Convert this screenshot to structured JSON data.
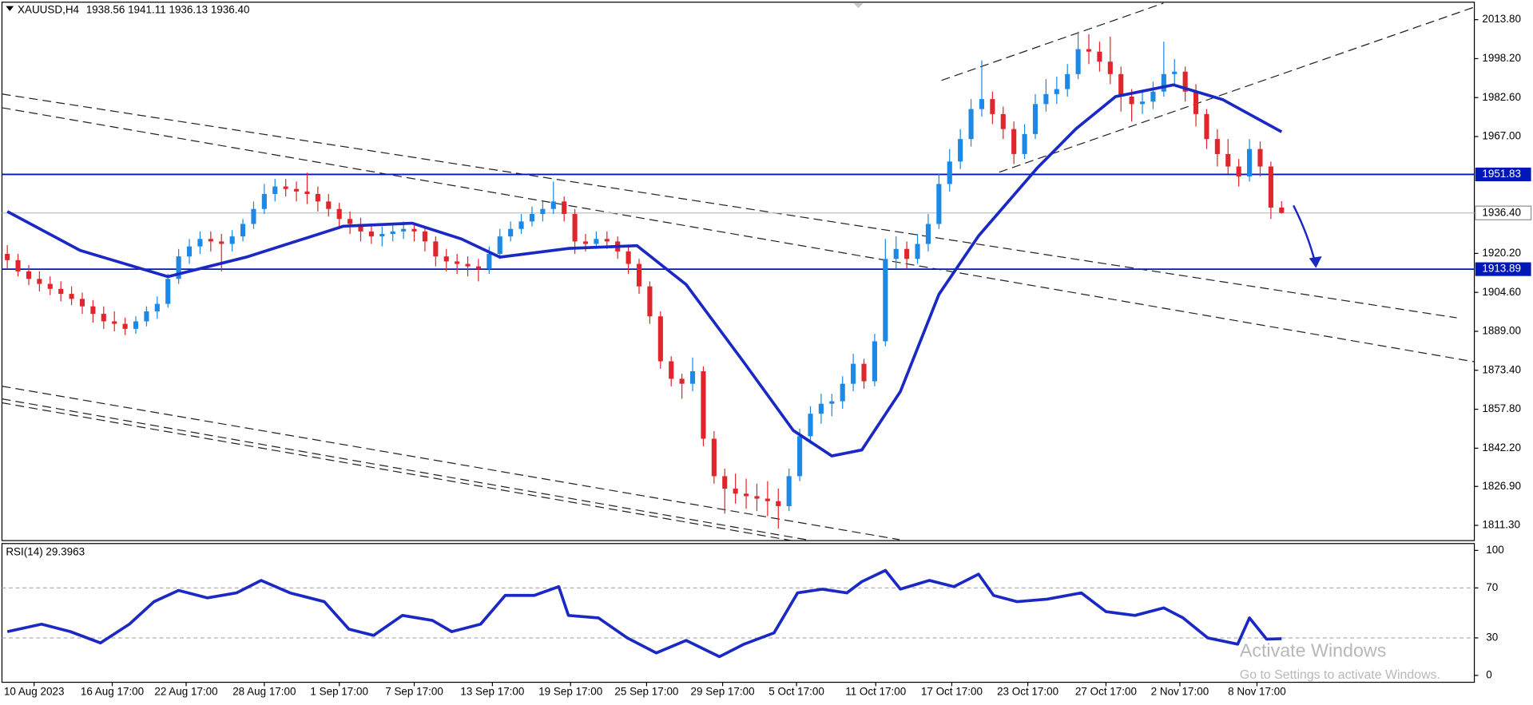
{
  "chart_data": [
    {
      "type": "candlestick",
      "title": "XAUUSD,H4",
      "header_values": [
        "1938.56",
        "1941.11",
        "1936.13",
        "1936.40"
      ],
      "bull_color": "#1e88e5",
      "bear_color": "#e0262c",
      "ohlc": [
        [
          1920,
          1923.5,
          1914,
          1917.5
        ],
        [
          1917.5,
          1920,
          1911,
          1913
        ],
        [
          1913,
          1915.5,
          1907.5,
          1910
        ],
        [
          1910,
          1913,
          1905,
          1908
        ],
        [
          1908,
          1911,
          1903.5,
          1906
        ],
        [
          1906,
          1909,
          1901,
          1904
        ],
        [
          1904,
          1907,
          1899.5,
          1902
        ],
        [
          1902,
          1904.5,
          1896,
          1899
        ],
        [
          1899,
          1901.5,
          1892.5,
          1896
        ],
        [
          1896,
          1899,
          1890,
          1893
        ],
        [
          1893,
          1897,
          1889,
          1892
        ],
        [
          1892,
          1894.5,
          1887.5,
          1890
        ],
        [
          1890,
          1895,
          1888,
          1893
        ],
        [
          1893,
          1899,
          1891,
          1897
        ],
        [
          1897,
          1903,
          1894,
          1900
        ],
        [
          1900,
          1912,
          1898.5,
          1910
        ],
        [
          1910,
          1922,
          1908,
          1919
        ],
        [
          1919,
          1926,
          1916,
          1923
        ],
        [
          1923,
          1929,
          1920,
          1926
        ],
        [
          1926,
          1929,
          1921,
          1925
        ],
        [
          1925,
          1928,
          1913,
          1924
        ],
        [
          1924,
          1929.5,
          1921,
          1927
        ],
        [
          1927,
          1934,
          1925,
          1932
        ],
        [
          1932,
          1941,
          1930,
          1938
        ],
        [
          1938,
          1948,
          1936,
          1944
        ],
        [
          1944,
          1950,
          1941,
          1947
        ],
        [
          1947,
          1950,
          1943,
          1946
        ],
        [
          1946,
          1949,
          1941,
          1945
        ],
        [
          1945,
          1952.5,
          1940,
          1944
        ],
        [
          1944,
          1947,
          1937,
          1941
        ],
        [
          1941,
          1944,
          1935,
          1938
        ],
        [
          1938,
          1940.5,
          1930,
          1934
        ],
        [
          1934,
          1937,
          1928,
          1932
        ],
        [
          1932,
          1934.5,
          1925,
          1929
        ],
        [
          1929,
          1932,
          1924,
          1927
        ],
        [
          1927,
          1931,
          1923,
          1928
        ],
        [
          1928,
          1932,
          1925,
          1929
        ],
        [
          1929,
          1933,
          1926,
          1930
        ],
        [
          1930,
          1932,
          1925,
          1929
        ],
        [
          1929,
          1931,
          1921,
          1925
        ],
        [
          1925,
          1927,
          1915,
          1919
        ],
        [
          1919,
          1922,
          1913,
          1917
        ],
        [
          1917,
          1920,
          1912,
          1916
        ],
        [
          1916,
          1919,
          1911,
          1915
        ],
        [
          1915,
          1918,
          1909,
          1914
        ],
        [
          1914,
          1923,
          1912,
          1920
        ],
        [
          1920,
          1930,
          1918,
          1927
        ],
        [
          1927,
          1933,
          1925,
          1930
        ],
        [
          1930,
          1936,
          1928,
          1933
        ],
        [
          1933,
          1939,
          1931,
          1936
        ],
        [
          1936,
          1941,
          1933,
          1938
        ],
        [
          1938,
          1949,
          1936,
          1941
        ],
        [
          1941,
          1943,
          1933,
          1936
        ],
        [
          1936,
          1938,
          1920,
          1925
        ],
        [
          1925,
          1928,
          1921,
          1924
        ],
        [
          1924,
          1929,
          1922,
          1926
        ],
        [
          1926,
          1929,
          1922,
          1925
        ],
        [
          1925,
          1927,
          1918,
          1921
        ],
        [
          1921,
          1923,
          1912,
          1916
        ],
        [
          1916,
          1918,
          1904,
          1907
        ],
        [
          1907,
          1909,
          1892,
          1895
        ],
        [
          1895,
          1897,
          1874,
          1877
        ],
        [
          1877,
          1879,
          1867,
          1870
        ],
        [
          1870,
          1872,
          1862,
          1868
        ],
        [
          1868,
          1878.5,
          1865,
          1873
        ],
        [
          1873,
          1875,
          1843,
          1846
        ],
        [
          1846,
          1849,
          1828,
          1831
        ],
        [
          1831,
          1834,
          1816,
          1826
        ],
        [
          1826,
          1832,
          1820,
          1824
        ],
        [
          1824,
          1830,
          1818,
          1823
        ],
        [
          1823,
          1828,
          1817,
          1822
        ],
        [
          1822,
          1829,
          1815,
          1821
        ],
        [
          1821,
          1826,
          1810,
          1819
        ],
        [
          1819,
          1834,
          1817,
          1831
        ],
        [
          1831,
          1850,
          1829,
          1847
        ],
        [
          1847,
          1859,
          1844,
          1856
        ],
        [
          1856,
          1864,
          1852,
          1860
        ],
        [
          1860,
          1864,
          1855,
          1861
        ],
        [
          1861,
          1871,
          1858,
          1868
        ],
        [
          1868,
          1880,
          1865,
          1876
        ],
        [
          1876,
          1878,
          1866,
          1869
        ],
        [
          1869,
          1888,
          1867,
          1885
        ],
        [
          1885,
          1926,
          1883,
          1918
        ],
        [
          1918,
          1927,
          1914,
          1922
        ],
        [
          1922,
          1925,
          1914,
          1918
        ],
        [
          1918,
          1928,
          1916,
          1924
        ],
        [
          1924,
          1936,
          1921,
          1932
        ],
        [
          1932,
          1952,
          1930,
          1948
        ],
        [
          1948,
          1962,
          1945,
          1957
        ],
        [
          1957,
          1970,
          1954,
          1966
        ],
        [
          1966,
          1982,
          1963,
          1978
        ],
        [
          1978,
          1997.5,
          1975,
          1982
        ],
        [
          1982,
          1985,
          1972,
          1976
        ],
        [
          1976,
          1979,
          1966,
          1970
        ],
        [
          1970,
          1973,
          1956,
          1960
        ],
        [
          1960,
          1972,
          1958,
          1968
        ],
        [
          1968,
          1984,
          1966,
          1980
        ],
        [
          1980,
          1990,
          1977,
          1984
        ],
        [
          1984,
          1991,
          1980,
          1986
        ],
        [
          1986,
          1996,
          1983,
          1992
        ],
        [
          1992,
          2009,
          1990,
          2002
        ],
        [
          2002,
          2008,
          1996,
          2001
        ],
        [
          2001,
          2005,
          1993,
          1997
        ],
        [
          1997,
          2007,
          1988,
          1992
        ],
        [
          1992,
          1995,
          1977,
          1983
        ],
        [
          1983,
          1986,
          1973,
          1980
        ],
        [
          1980,
          1985,
          1976,
          1981
        ],
        [
          1981,
          1989,
          1978,
          1985
        ],
        [
          1985,
          2005,
          1983,
          1992
        ],
        [
          1992,
          1998,
          1988,
          1993
        ],
        [
          1993,
          1995,
          1981,
          1985
        ],
        [
          1985,
          1988,
          1971,
          1976
        ],
        [
          1976,
          1978,
          1962,
          1966
        ],
        [
          1966,
          1970,
          1955,
          1960
        ],
        [
          1960,
          1966,
          1952,
          1955
        ],
        [
          1955,
          1958,
          1947,
          1951
        ],
        [
          1951,
          1966,
          1949,
          1962
        ],
        [
          1962,
          1965,
          1951,
          1955
        ],
        [
          1955,
          1957,
          1934,
          1938.56
        ],
        [
          1938.56,
          1941.11,
          1936.13,
          1936.4
        ]
      ],
      "xlim": [
        -0.5,
        137
      ],
      "xticks": [
        {
          "value": 2.5,
          "label": "10 Aug 2023"
        },
        {
          "value": 9.8,
          "label": "16 Aug 17:00"
        },
        {
          "value": 16.7,
          "label": "22 Aug 17:00"
        },
        {
          "value": 24,
          "label": "28 Aug 17:00"
        },
        {
          "value": 31,
          "label": "1 Sep 17:00"
        },
        {
          "value": 38,
          "label": "7 Sep 17:00"
        },
        {
          "value": 45.3,
          "label": "13 Sep 17:00"
        },
        {
          "value": 52.6,
          "label": "19 Sep 17:00"
        },
        {
          "value": 59.7,
          "label": "25 Sep 17:00"
        },
        {
          "value": 66.8,
          "label": "29 Sep 17:00"
        },
        {
          "value": 73.7,
          "label": "5 Oct 17:00"
        },
        {
          "value": 81.1,
          "label": "11 Oct 17:00"
        },
        {
          "value": 88.2,
          "label": "17 Oct 17:00"
        },
        {
          "value": 95.3,
          "label": "23 Oct 17:00"
        },
        {
          "value": 102.6,
          "label": "27 Oct 17:00"
        },
        {
          "value": 109.5,
          "label": "2 Nov 17:00"
        },
        {
          "value": 116.7,
          "label": "8 Nov 17:00"
        }
      ],
      "ylim": [
        1805.2,
        2020.8
      ],
      "yticks": [
        {
          "value": 2013.8,
          "label": "2013.80"
        },
        {
          "value": 1998.2,
          "label": "1998.20"
        },
        {
          "value": 1982.6,
          "label": "1982.60"
        },
        {
          "value": 1967,
          "label": "1967.00"
        },
        {
          "value": 1920.2,
          "label": "1920.20"
        },
        {
          "value": 1904.6,
          "label": "1904.60"
        },
        {
          "value": 1889,
          "label": "1889.00"
        },
        {
          "value": 1873.4,
          "label": "1873.40"
        },
        {
          "value": 1857.8,
          "label": "1857.80"
        },
        {
          "value": 1842.2,
          "label": "1842.20"
        },
        {
          "value": 1826.9,
          "label": "1826.90"
        },
        {
          "value": 1811.3,
          "label": "1811.30"
        }
      ],
      "hlines": [
        1951.83,
        1913.89
      ],
      "hline_color": "#0018b8",
      "last_price": {
        "value": 1936.4,
        "label": "1936.40"
      },
      "ma": {
        "color": "#1a28c4",
        "x": [
          0,
          6.8,
          15,
          22.3,
          31.4,
          37.8,
          42.4,
          46,
          52.4,
          58.8,
          63.4,
          68.8,
          73.4,
          77,
          79.8,
          83.4,
          87,
          90.7,
          96.2,
          99.8,
          103.5,
          108.9,
          113.5,
          119
        ],
        "values": [
          1937,
          1921.4,
          1910.9,
          1918.7,
          1931.1,
          1932.3,
          1926,
          1918.7,
          1922.2,
          1923.3,
          1907.7,
          1876.5,
          1849.3,
          1839.1,
          1841.5,
          1864.9,
          1903.8,
          1927.2,
          1954.5,
          1970.1,
          1983,
          1987.7,
          1981.8,
          1968.9
        ]
      },
      "watermark": [
        "Activate Windows",
        "Go to Settings to activate Windows."
      ]
    },
    {
      "type": "line",
      "title": "RSI(14) 29.3963",
      "color": "#1a28c4",
      "x": [
        0,
        3.2,
        5.9,
        8.7,
        11.4,
        13.7,
        16,
        18.7,
        21.4,
        23.7,
        26.4,
        29.6,
        31.9,
        34.2,
        36.9,
        39.7,
        41.5,
        44.2,
        46.5,
        49.2,
        51.5,
        52.4,
        55.2,
        57.9,
        60.6,
        63.4,
        66.5,
        68.8,
        71.6,
        73.8,
        76.1,
        78.4,
        79.8,
        82,
        83.4,
        86.1,
        88.4,
        90.7,
        92.1,
        94.3,
        97.1,
        100.3,
        102.6,
        105.3,
        108,
        109.8,
        112.1,
        114.9,
        116,
        117.6,
        119
      ],
      "values": [
        35,
        41,
        35,
        26,
        41,
        59,
        68,
        62,
        66,
        76,
        66,
        59,
        37,
        32,
        48,
        44,
        35,
        41,
        64,
        64,
        71,
        48,
        46,
        30,
        18,
        28,
        15,
        25,
        34,
        66,
        69,
        66,
        75,
        84,
        69,
        76,
        71,
        81,
        64,
        59,
        61,
        66,
        51,
        48,
        54,
        46,
        30,
        25,
        46,
        29,
        29.3963
      ],
      "xlim": [
        -0.5,
        137
      ],
      "ylim": [
        -5.5,
        105.5
      ],
      "yticks": [
        100,
        70,
        30,
        0
      ],
      "levels": [
        70,
        30
      ]
    }
  ]
}
